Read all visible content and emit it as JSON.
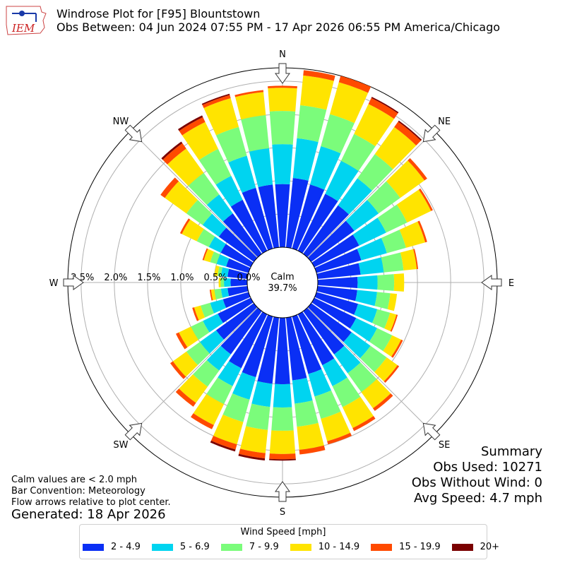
{
  "header": {
    "logo_text": "IEM",
    "title_line1": "Windrose Plot for [F95] Blountstown",
    "title_line2": "Obs Between: 04 Jun 2024 07:55 PM - 17 Apr 2026 06:55 PM America/Chicago"
  },
  "notes": {
    "calm_def": "Calm values are < 2.0 mph",
    "bar_convention": "Bar Convention: Meteorology",
    "flow_arrows": "Flow arrows relative to plot center.",
    "generated": "Generated: 18 Apr 2026"
  },
  "summary": {
    "title": "Summary",
    "obs_used": "Obs Used: 10271",
    "obs_without_wind": "Obs Without Wind: 0",
    "avg_speed": "Avg Speed: 4.7 mph"
  },
  "legend": {
    "title": "Wind Speed [mph]",
    "items": [
      {
        "label": "2 - 4.9",
        "color": "#0a2ff5"
      },
      {
        "label": "5 - 6.9",
        "color": "#00d4f0"
      },
      {
        "label": "7 - 9.9",
        "color": "#7bfc7b"
      },
      {
        "label": "10 - 14.9",
        "color": "#ffe400"
      },
      {
        "label": "15 - 19.9",
        "color": "#ff4a00"
      },
      {
        "label": "20+",
        "color": "#7a0000"
      }
    ]
  },
  "chart_data": {
    "type": "windrose",
    "calm_label": "Calm",
    "calm_value": "39.7%",
    "radial_axis": {
      "unit": "%",
      "max": 2.7,
      "ticks": [
        0.0,
        0.5,
        1.0,
        1.5,
        2.0,
        2.5
      ],
      "tick_labels": [
        "0.0%",
        "0.5%",
        "1.0%",
        "1.5%",
        "2.0%",
        "2.5%"
      ]
    },
    "compass_labels": [
      {
        "dir": 0,
        "label": "N"
      },
      {
        "dir": 45,
        "label": "NE"
      },
      {
        "dir": 90,
        "label": "E"
      },
      {
        "dir": 135,
        "label": "SE"
      },
      {
        "dir": 180,
        "label": "S"
      },
      {
        "dir": 225,
        "label": "SW"
      },
      {
        "dir": 270,
        "label": "W"
      },
      {
        "dir": 315,
        "label": "NW"
      }
    ],
    "directions_deg": [
      0,
      10,
      20,
      30,
      40,
      50,
      60,
      70,
      80,
      90,
      100,
      110,
      120,
      130,
      140,
      150,
      160,
      170,
      180,
      190,
      200,
      210,
      220,
      230,
      240,
      250,
      260,
      270,
      280,
      290,
      300,
      310,
      320,
      330,
      340,
      350
    ],
    "speed_bins": [
      "2 - 4.9",
      "5 - 6.9",
      "7 - 9.9",
      "10 - 14.9",
      "15 - 19.9",
      "20+"
    ],
    "series": [
      {
        "name": "2 - 4.9",
        "values": [
          0.95,
          1.05,
          1.0,
          0.95,
          0.9,
          0.8,
          0.75,
          0.7,
          0.65,
          0.6,
          0.6,
          0.65,
          0.7,
          0.75,
          0.8,
          0.85,
          0.9,
          0.95,
          1.0,
          1.0,
          0.95,
          0.9,
          0.8,
          0.7,
          0.55,
          0.4,
          0.3,
          0.25,
          0.3,
          0.35,
          0.5,
          0.65,
          0.75,
          0.85,
          0.95,
          0.95
        ]
      },
      {
        "name": "5 - 6.9",
        "values": [
          0.6,
          0.6,
          0.6,
          0.55,
          0.5,
          0.45,
          0.45,
          0.4,
          0.35,
          0.3,
          0.3,
          0.3,
          0.35,
          0.35,
          0.35,
          0.35,
          0.35,
          0.35,
          0.35,
          0.35,
          0.35,
          0.3,
          0.3,
          0.3,
          0.25,
          0.2,
          0.1,
          0.1,
          0.1,
          0.15,
          0.2,
          0.3,
          0.35,
          0.4,
          0.5,
          0.55
        ]
      },
      {
        "name": "7 - 9.9",
        "values": [
          0.5,
          0.5,
          0.5,
          0.45,
          0.45,
          0.4,
          0.35,
          0.3,
          0.3,
          0.25,
          0.2,
          0.2,
          0.25,
          0.3,
          0.35,
          0.35,
          0.35,
          0.35,
          0.35,
          0.35,
          0.35,
          0.3,
          0.3,
          0.25,
          0.2,
          0.15,
          0.1,
          0.05,
          0.05,
          0.1,
          0.2,
          0.3,
          0.4,
          0.45,
          0.45,
          0.5
        ]
      },
      {
        "name": "10 - 14.9",
        "values": [
          0.35,
          0.45,
          0.5,
          0.5,
          0.5,
          0.45,
          0.4,
          0.3,
          0.2,
          0.15,
          0.1,
          0.1,
          0.15,
          0.2,
          0.3,
          0.35,
          0.35,
          0.35,
          0.35,
          0.35,
          0.35,
          0.35,
          0.3,
          0.25,
          0.2,
          0.1,
          0.05,
          0.03,
          0.05,
          0.1,
          0.25,
          0.4,
          0.45,
          0.45,
          0.45,
          0.35
        ]
      },
      {
        "name": "15 - 19.9",
        "values": [
          0.03,
          0.08,
          0.1,
          0.1,
          0.1,
          0.05,
          0.03,
          0.03,
          0.02,
          0.0,
          0.0,
          0.02,
          0.03,
          0.03,
          0.05,
          0.05,
          0.05,
          0.07,
          0.08,
          0.08,
          0.08,
          0.07,
          0.07,
          0.05,
          0.05,
          0.03,
          0.02,
          0.0,
          0.0,
          0.02,
          0.03,
          0.08,
          0.1,
          0.08,
          0.05,
          0.03
        ]
      },
      {
        "name": "20+",
        "values": [
          0.0,
          0.0,
          0.0,
          0.02,
          0.02,
          0.0,
          0.0,
          0.0,
          0.0,
          0.0,
          0.0,
          0.0,
          0.0,
          0.0,
          0.0,
          0.0,
          0.0,
          0.0,
          0.02,
          0.03,
          0.03,
          0.0,
          0.0,
          0.0,
          0.0,
          0.0,
          0.0,
          0.0,
          0.0,
          0.0,
          0.0,
          0.0,
          0.03,
          0.03,
          0.02,
          0.0
        ]
      }
    ]
  }
}
